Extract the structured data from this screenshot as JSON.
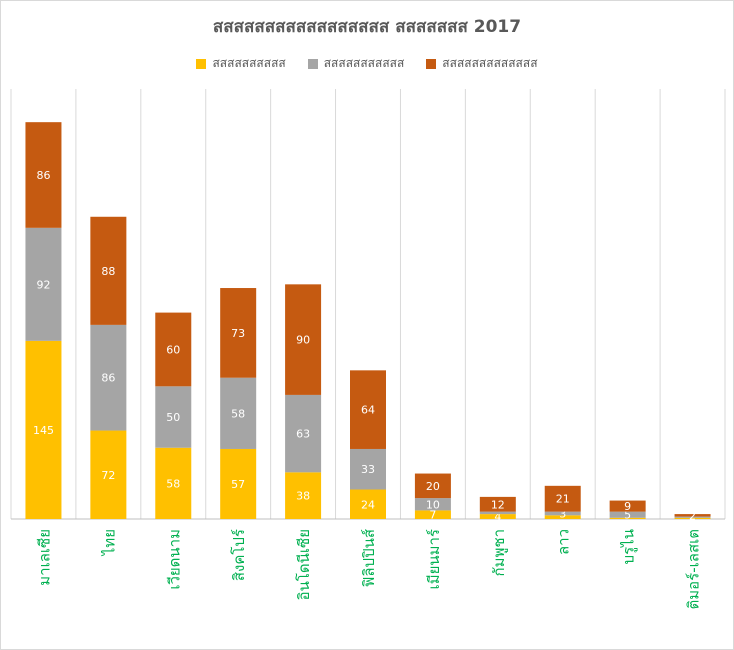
{
  "chart_data": {
    "type": "bar",
    "stacked": true,
    "title": "สสสสสสสสสสสสสสสสส สสสสสสส 2017",
    "categories": [
      "มาเลเซีย",
      "ไทย",
      "เวียดนาม",
      "สิงคโปร์",
      "อินโดนีเซีย",
      "ฟิลิปปินส์",
      "เมียนมาร์",
      "กัมพูชา",
      "ลาว",
      "บรูไน",
      "ติมอร์-เลสเต"
    ],
    "series": [
      {
        "name": "สสสสสสสสสส",
        "color": "#ffc000",
        "values": [
          145,
          72,
          58,
          57,
          38,
          24,
          7,
          4,
          3,
          1,
          1
        ]
      },
      {
        "name": "สสสสสสสสสสส",
        "color": "#a5a5a5",
        "values": [
          92,
          86,
          50,
          58,
          63,
          33,
          10,
          2,
          3,
          5,
          1
        ]
      },
      {
        "name": "สสสสสสสสสสสสส",
        "color": "#c55a11",
        "values": [
          86,
          88,
          60,
          73,
          90,
          64,
          20,
          12,
          21,
          9,
          2
        ]
      }
    ],
    "data_labels": [
      [
        "145",
        "72",
        "58",
        "57",
        "38",
        "24",
        "7",
        "4",
        "",
        "",
        ""
      ],
      [
        "92",
        "86",
        "50",
        "58",
        "63",
        "33",
        "10",
        "",
        "3",
        "5",
        ""
      ],
      [
        "86",
        "88",
        "60",
        "73",
        "90",
        "64",
        "20",
        "12",
        "21",
        "9",
        "2"
      ]
    ],
    "ylim": [
      0,
      350
    ],
    "grid": "vertical",
    "legend_position": "top",
    "category_label_color": "#00b050",
    "xlabel": "",
    "ylabel": ""
  }
}
